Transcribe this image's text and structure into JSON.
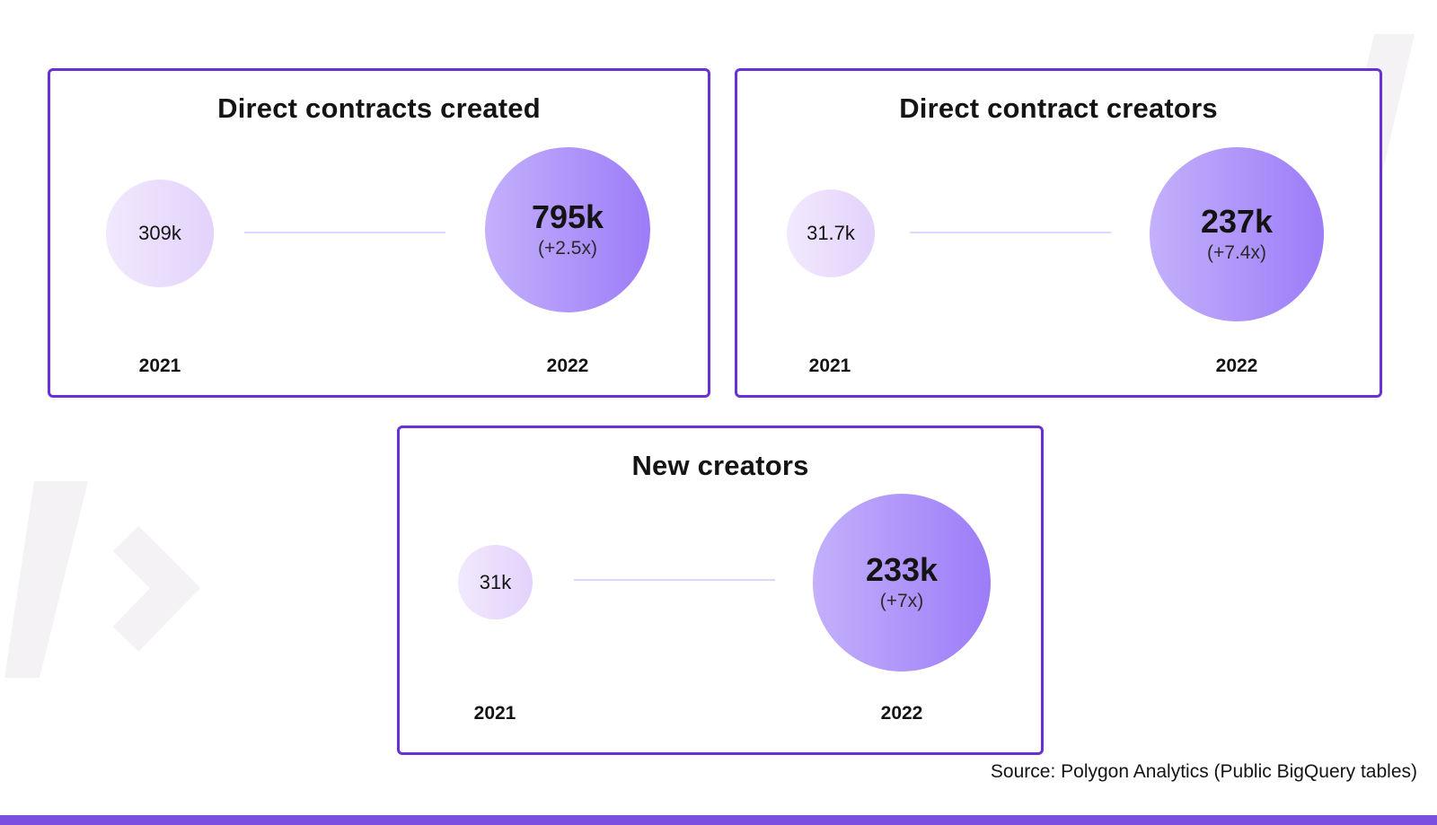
{
  "chart_data": [
    {
      "type": "bubble",
      "title": "Direct contracts created",
      "categories": [
        "2021",
        "2022"
      ],
      "values": [
        309000,
        795000
      ],
      "value_labels": [
        "309k",
        "795k"
      ],
      "growth_label": "(+2.5x)"
    },
    {
      "type": "bubble",
      "title": "Direct contract creators",
      "categories": [
        "2021",
        "2022"
      ],
      "values": [
        31700,
        237000
      ],
      "value_labels": [
        "31.7k",
        "237k"
      ],
      "growth_label": "(+7.4x)"
    },
    {
      "type": "bubble",
      "title": "New creators",
      "categories": [
        "2021",
        "2022"
      ],
      "values": [
        31000,
        233000
      ],
      "value_labels": [
        "31k",
        "233k"
      ],
      "growth_label": "(+7x)"
    }
  ],
  "source": "Source: Polygon Analytics (Public BigQuery tables)",
  "colors": {
    "border": "#6b2fd6",
    "bubble_small": "#ebdefc",
    "bubble_big": "#a687f9",
    "connector": "#e2d4fb",
    "bottom_bar": "#7b4fe0"
  }
}
